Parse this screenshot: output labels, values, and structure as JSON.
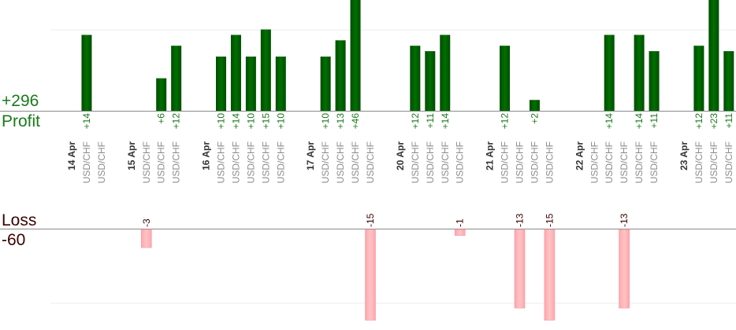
{
  "summary": {
    "profit_total": "+296",
    "profit_label": "Profit",
    "loss_label": "Loss",
    "loss_total": "-60"
  },
  "colors": {
    "profit_bar": "#006400",
    "profit_text": "#1a7a1a",
    "loss_bar": "#ffb6b9",
    "loss_text": "#3a0000",
    "pair_text": "#8c8c8c",
    "date_text": "#333333"
  },
  "chart_data": {
    "type": "bar",
    "title": "",
    "xlabel": "",
    "ylabel": "",
    "slots": [
      {
        "date": "14 Apr"
      },
      {
        "pair": "USD/CHF",
        "profit": 14
      },
      {
        "pair": "USD/CHF"
      },
      {
        "gap": true
      },
      {
        "date": "15 Apr"
      },
      {
        "pair": "USD/CHF",
        "loss": -3
      },
      {
        "pair": "USD/CHF",
        "profit": 6
      },
      {
        "pair": "USD/CHF",
        "profit": 12
      },
      {
        "gap": true
      },
      {
        "date": "16 Apr"
      },
      {
        "pair": "USD/CHF",
        "profit": 10
      },
      {
        "pair": "USD/CHF",
        "profit": 14
      },
      {
        "pair": "USD/CHF",
        "profit": 10
      },
      {
        "pair": "USD/CHF",
        "profit": 15
      },
      {
        "pair": "USD/CHF",
        "profit": 10
      },
      {
        "gap": true
      },
      {
        "date": "17 Apr"
      },
      {
        "pair": "USD/CHF",
        "profit": 10
      },
      {
        "pair": "USD/CHF",
        "profit": 13
      },
      {
        "pair": "USD/CHF",
        "profit": 46
      },
      {
        "pair": "USD/CHF",
        "loss": -15
      },
      {
        "gap": true
      },
      {
        "date": "20 Apr"
      },
      {
        "pair": "USD/CHF",
        "profit": 12
      },
      {
        "pair": "USD/CHF",
        "profit": 11
      },
      {
        "pair": "USD/CHF",
        "profit": 14
      },
      {
        "pair": "USD/CHF",
        "loss": -1
      },
      {
        "gap": true
      },
      {
        "date": "21 Apr"
      },
      {
        "pair": "USD/CHF",
        "profit": 12
      },
      {
        "pair": "USD/CHF",
        "loss": -13
      },
      {
        "pair": "USD/CHF",
        "profit": 2
      },
      {
        "pair": "USD/CHF",
        "loss": -15
      },
      {
        "gap": true
      },
      {
        "date": "22 Apr"
      },
      {
        "pair": "USD/CHF"
      },
      {
        "pair": "USD/CHF",
        "profit": 14
      },
      {
        "pair": "USD/CHF",
        "loss": -13
      },
      {
        "pair": "USD/CHF",
        "profit": 14
      },
      {
        "pair": "USD/CHF",
        "profit": 11
      },
      {
        "gap": true
      },
      {
        "date": "23 Apr"
      },
      {
        "pair": "USD/CHF",
        "profit": 12
      },
      {
        "pair": "USD/CHF",
        "profit": 23
      },
      {
        "pair": "USD/CHF",
        "profit": 11
      }
    ]
  }
}
